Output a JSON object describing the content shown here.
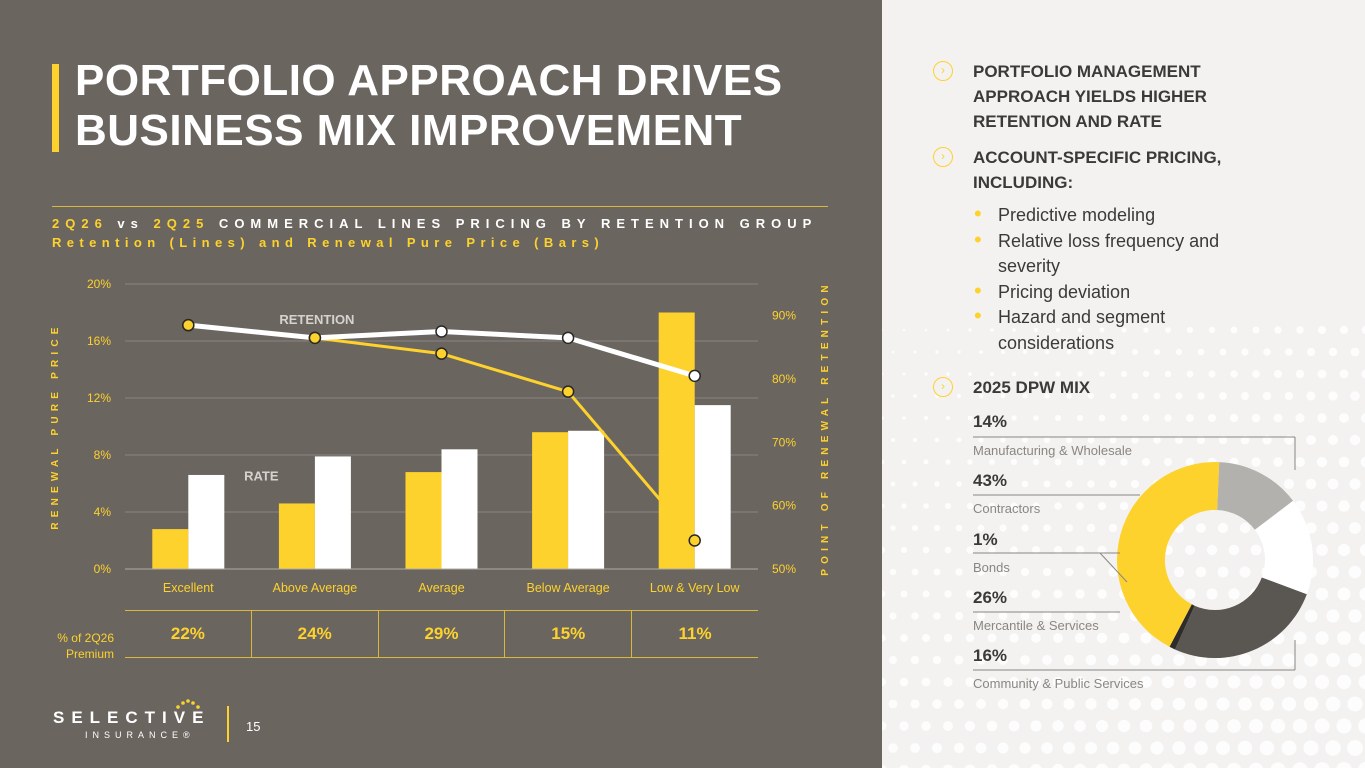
{
  "title": [
    "PORTFOLIO APPROACH DRIVES",
    "BUSINESS MIX IMPROVEMENT"
  ],
  "subtitle": {
    "line1_a": "2Q26",
    "line1_b": " vs ",
    "line1_c": "2Q25",
    "line1_d": " COMMERCIAL LINES PRICING BY RETENTION GROUP",
    "line2": "Retention (Lines) and Renewal Pure Price (Bars)"
  },
  "chart_data": {
    "type": "bar",
    "categories": [
      "Excellent",
      "Above Average",
      "Average",
      "Below Average",
      "Low & Very Low"
    ],
    "series": [
      {
        "name": "",
        "kind": "bar",
        "axis": "left",
        "values": [
          2.8,
          4.6,
          6.8,
          9.6,
          18.0
        ],
        "color": "#fdd22d"
      },
      {
        "name": "",
        "kind": "bar",
        "axis": "left",
        "values": [
          6.6,
          7.9,
          8.4,
          9.7,
          11.5
        ],
        "color": "#ffffff"
      },
      {
        "name": "",
        "kind": "line",
        "axis": "right",
        "values": [
          88.5,
          86.5,
          84.0,
          78.0,
          54.5
        ],
        "color": "#fdd22d"
      },
      {
        "name": "",
        "kind": "line",
        "axis": "right",
        "values": [
          88.5,
          86.5,
          87.5,
          86.5,
          80.5
        ],
        "color": "#ffffff"
      }
    ],
    "annotations": [
      {
        "text": "RETENTION",
        "category": 1
      },
      {
        "text": "RATE",
        "category": 0
      }
    ],
    "ylabel_left": "RENEWAL PURE PRICE",
    "ylabel_right": "POINT OF RENEWAL RETENTION",
    "yticks_left": [
      "0%",
      "4%",
      "8%",
      "12%",
      "16%",
      "20%"
    ],
    "ylim_left": [
      0,
      20
    ],
    "yticks_right": [
      "50%",
      "60%",
      "70%",
      "80%",
      "90%"
    ],
    "ylim_right": [
      50,
      95
    ],
    "grid": true
  },
  "premium": {
    "label_line1": "% of 2Q26",
    "label_line2": "Premium",
    "values": [
      "22%",
      "24%",
      "29%",
      "15%",
      "11%"
    ]
  },
  "logo": {
    "main": "SELECTIVE",
    "sub": "INSURANCE®"
  },
  "page_number": "15",
  "right": {
    "heading1": [
      "PORTFOLIO MANAGEMENT",
      "APPROACH YIELDS HIGHER",
      "RETENTION AND RATE"
    ],
    "heading2": [
      "ACCOUNT-SPECIFIC PRICING,",
      "INCLUDING:"
    ],
    "items": [
      "Predictive modeling",
      "Relative loss frequency and severity",
      "Pricing deviation",
      "Hazard and segment considerations"
    ],
    "heading3": "2025 DPW MIX",
    "mix": [
      {
        "pct": "14%",
        "label": "Manufacturing & Wholesale",
        "value": 14,
        "color": "#b3b1ae"
      },
      {
        "pct": "43%",
        "label": "Contractors",
        "value": 43,
        "color": "#fdd22d"
      },
      {
        "pct": "1%",
        "label": "Bonds",
        "value": 1,
        "color": "#2e2c2a"
      },
      {
        "pct": "26%",
        "label": "Mercantile & Services",
        "value": 26,
        "color": "#5a5651"
      },
      {
        "pct": "16%",
        "label": "Community & Public Services",
        "value": 16,
        "color": "#ffffff"
      }
    ]
  }
}
